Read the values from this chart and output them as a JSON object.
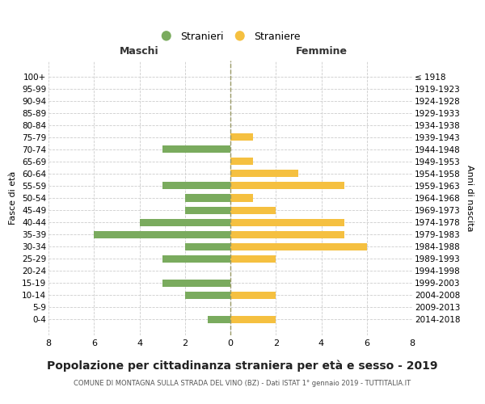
{
  "age_groups": [
    "100+",
    "95-99",
    "90-94",
    "85-89",
    "80-84",
    "75-79",
    "70-74",
    "65-69",
    "60-64",
    "55-59",
    "50-54",
    "45-49",
    "40-44",
    "35-39",
    "30-34",
    "25-29",
    "20-24",
    "15-19",
    "10-14",
    "5-9",
    "0-4"
  ],
  "birth_years": [
    "≤ 1918",
    "1919-1923",
    "1924-1928",
    "1929-1933",
    "1934-1938",
    "1939-1943",
    "1944-1948",
    "1949-1953",
    "1954-1958",
    "1959-1963",
    "1964-1968",
    "1969-1973",
    "1974-1978",
    "1979-1983",
    "1984-1988",
    "1989-1993",
    "1994-1998",
    "1999-2003",
    "2004-2008",
    "2009-2013",
    "2014-2018"
  ],
  "males": [
    0,
    0,
    0,
    0,
    0,
    0,
    3,
    0,
    0,
    3,
    2,
    2,
    4,
    6,
    2,
    3,
    0,
    3,
    2,
    0,
    1
  ],
  "females": [
    0,
    0,
    0,
    0,
    0,
    1,
    0,
    1,
    3,
    5,
    1,
    2,
    5,
    5,
    6,
    2,
    0,
    0,
    2,
    0,
    2
  ],
  "male_color": "#7aab5e",
  "female_color": "#f5c040",
  "grid_color": "#cccccc",
  "center_line_color": "#999966",
  "title": "Popolazione per cittadinanza straniera per età e sesso - 2019",
  "subtitle": "COMUNE DI MONTAGNA SULLA STRADA DEL VINO (BZ) - Dati ISTAT 1° gennaio 2019 - TUTTITALIA.IT",
  "header_left": "Maschi",
  "header_right": "Femmine",
  "ylabel_left": "Fasce di età",
  "ylabel_right": "Anni di nascita",
  "legend_male": "Stranieri",
  "legend_female": "Straniere",
  "xlim": 8,
  "background_color": "#ffffff"
}
